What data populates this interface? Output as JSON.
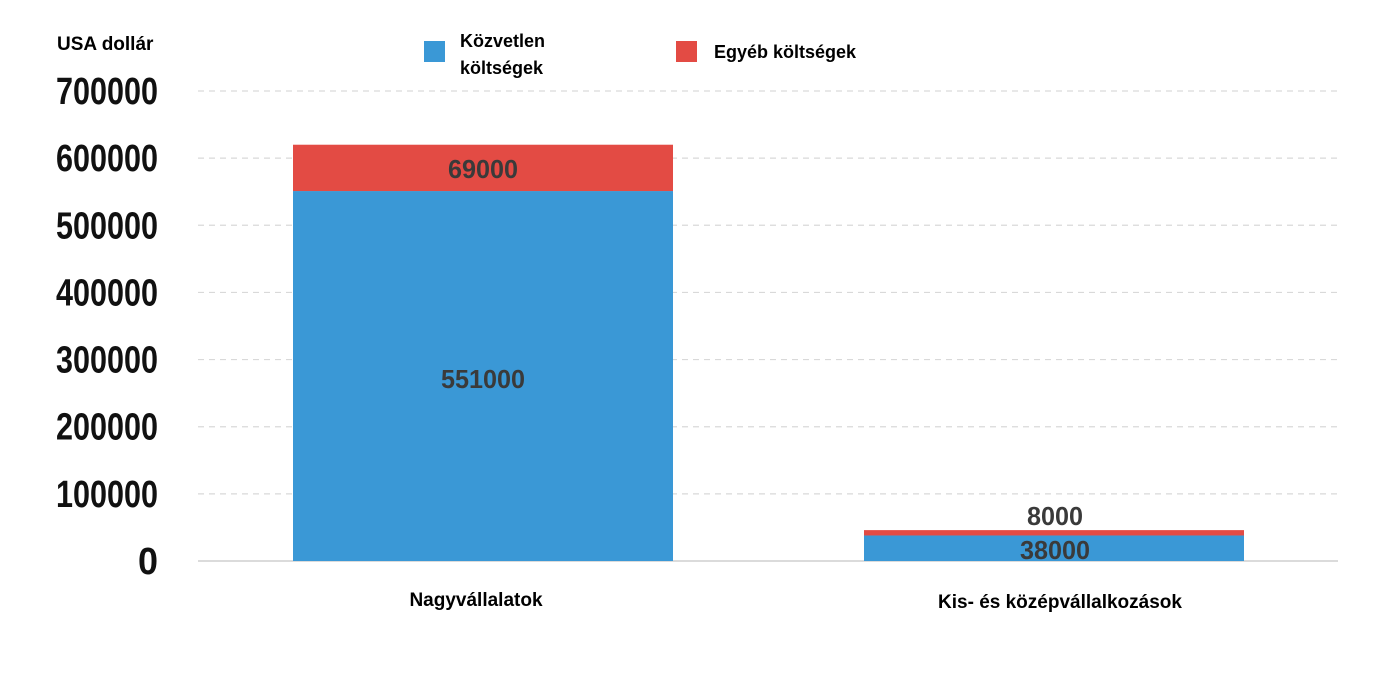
{
  "chart_data": {
    "type": "bar",
    "stacked": true,
    "ylabel": "USA dollár",
    "xlabel": "",
    "ylim": [
      0,
      700000
    ],
    "yticks": [
      "700000",
      "600000",
      "500000",
      "400000",
      "300000",
      "200000",
      "100000",
      "0"
    ],
    "categories": [
      "Nagyvállalatok",
      "Kis- és középvállalkozások"
    ],
    "series": [
      {
        "name": "Közvetlen költségek",
        "legend_lines": [
          "Közvetlen",
          "költségek"
        ],
        "color": "#3a98d6",
        "values": [
          551000,
          38000
        ],
        "labels": [
          "551000",
          "38000"
        ]
      },
      {
        "name": "Egyéb költségek",
        "legend_lines": [
          "Egyéb költségek"
        ],
        "color": "#e34b44",
        "values": [
          69000,
          8000
        ],
        "labels": [
          "69000",
          "8000"
        ]
      }
    ],
    "grid": true,
    "legend_position": "top"
  }
}
